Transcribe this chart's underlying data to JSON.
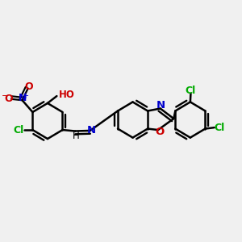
{
  "bg_color": "#f0f0f0",
  "bond_color": "#000000",
  "bond_width": 1.8,
  "figsize": [
    3.0,
    3.0
  ],
  "dpi": 100,
  "colors": {
    "C": "#000000",
    "N": "#0000cc",
    "O": "#cc0000",
    "Cl": "#00aa00",
    "H": "#000000"
  }
}
